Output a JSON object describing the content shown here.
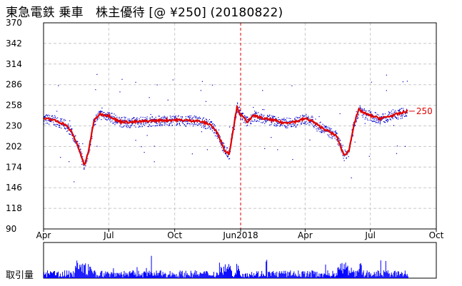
{
  "title": "東急電鉄 乗車　株主優待 [@ ¥250] (20180822)",
  "volume_label": "取引量",
  "colors": {
    "price_line": "#e00000",
    "quote_dots": "#0000cc",
    "volume_bars": "#0000ff",
    "grid": "#c8c8c8",
    "marker_line": "#e00000"
  },
  "chart_data": {
    "type": "line",
    "title": "東急電鉄 乗車　株主優待 [@ ¥250] (20180822)",
    "ylim": [
      90,
      370
    ],
    "y_ticks": [
      370,
      342,
      314,
      286,
      258,
      230,
      202,
      174,
      146,
      118,
      90
    ],
    "x_ticks": [
      "Apr",
      "Jul",
      "Oct",
      "Jan",
      "Apr",
      "Jul",
      "Oct"
    ],
    "x_range": [
      "2017-04",
      "2018-10"
    ],
    "marker": {
      "x": "2018-01",
      "label": "Jun2018"
    },
    "last_value_label": "250",
    "grid": true,
    "series": [
      {
        "values_by_month": [
          {
            "x": "2017-04-01",
            "y": 240
          },
          {
            "x": "2017-04-15",
            "y": 238
          },
          {
            "x": "2017-05-01",
            "y": 232
          },
          {
            "x": "2017-05-10",
            "y": 222
          },
          {
            "x": "2017-05-20",
            "y": 200
          },
          {
            "x": "2017-05-28",
            "y": 176
          },
          {
            "x": "2017-06-03",
            "y": 196
          },
          {
            "x": "2017-06-10",
            "y": 236
          },
          {
            "x": "2017-06-18",
            "y": 246
          },
          {
            "x": "2017-07-01",
            "y": 244
          },
          {
            "x": "2017-07-15",
            "y": 236
          },
          {
            "x": "2017-08-01",
            "y": 235
          },
          {
            "x": "2017-09-01",
            "y": 237
          },
          {
            "x": "2017-10-01",
            "y": 238
          },
          {
            "x": "2017-11-01",
            "y": 237
          },
          {
            "x": "2017-11-20",
            "y": 232
          },
          {
            "x": "2017-12-01",
            "y": 218
          },
          {
            "x": "2017-12-10",
            "y": 196
          },
          {
            "x": "2017-12-16",
            "y": 192
          },
          {
            "x": "2017-12-22",
            "y": 228
          },
          {
            "x": "2017-12-27",
            "y": 256
          },
          {
            "x": "2018-01-01",
            "y": 245
          },
          {
            "x": "2018-01-10",
            "y": 236
          },
          {
            "x": "2018-01-20",
            "y": 244
          },
          {
            "x": "2018-02-01",
            "y": 240
          },
          {
            "x": "2018-02-15",
            "y": 238
          },
          {
            "x": "2018-03-01",
            "y": 234
          },
          {
            "x": "2018-03-20",
            "y": 236
          },
          {
            "x": "2018-04-01",
            "y": 240
          },
          {
            "x": "2018-04-10",
            "y": 237
          },
          {
            "x": "2018-04-20",
            "y": 230
          },
          {
            "x": "2018-05-01",
            "y": 224
          },
          {
            "x": "2018-05-15",
            "y": 216
          },
          {
            "x": "2018-05-25",
            "y": 190
          },
          {
            "x": "2018-06-01",
            "y": 196
          },
          {
            "x": "2018-06-08",
            "y": 232
          },
          {
            "x": "2018-06-15",
            "y": 252
          },
          {
            "x": "2018-06-25",
            "y": 246
          },
          {
            "x": "2018-07-01",
            "y": 244
          },
          {
            "x": "2018-07-15",
            "y": 240
          },
          {
            "x": "2018-08-01",
            "y": 244
          },
          {
            "x": "2018-08-15",
            "y": 248
          },
          {
            "x": "2018-08-22",
            "y": 250
          }
        ]
      }
    ]
  }
}
